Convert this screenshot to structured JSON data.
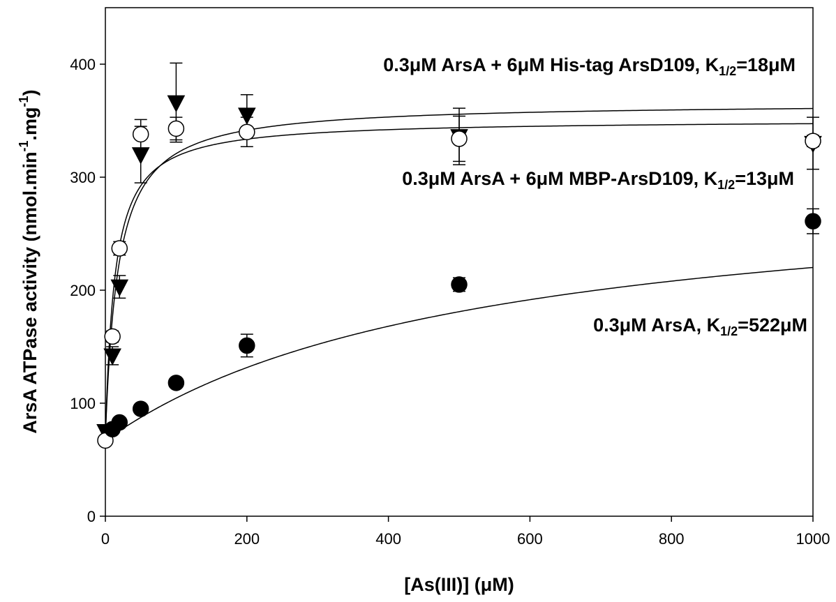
{
  "chart_data": {
    "type": "scatter",
    "xlabel": "[As(III)] (μM)",
    "ylabel": {
      "main": "ArsA ATPase activity (nmol.min",
      "sup1": "-1",
      "mid": ".mg",
      "sup2": "-1",
      "end": ")"
    },
    "xlim": [
      0,
      1000
    ],
    "ylim": [
      0,
      450
    ],
    "xticks": [
      0,
      200,
      400,
      600,
      800,
      1000
    ],
    "yticks": [
      0,
      100,
      200,
      300,
      400
    ],
    "grid": false,
    "annotations": [
      {
        "parts": [
          {
            "text": "0.3μM ArsA + 6μM His-tag ArsD109, K"
          },
          {
            "text": "1/2",
            "sub": true
          },
          {
            "text": "=18μM"
          }
        ]
      },
      {
        "parts": [
          {
            "text": "0.3μM ArsA + 6μM MBP-ArsD109, K"
          },
          {
            "text": "1/2",
            "sub": true
          },
          {
            "text": "=13μM"
          }
        ]
      },
      {
        "parts": [
          {
            "text": "0.3μM ArsA, K"
          },
          {
            "text": "1/2",
            "sub": true
          },
          {
            "text": "=522μM"
          }
        ]
      }
    ],
    "series": [
      {
        "marker": "triangle-down-filled",
        "x": [
          0,
          10,
          20,
          50,
          100,
          200,
          500,
          1000
        ],
        "y": [
          75,
          142,
          203,
          320,
          366,
          355,
          336,
          330
        ],
        "err": [
          5,
          8,
          10,
          25,
          35,
          18,
          25,
          23
        ],
        "fit": {
          "vmax": 366,
          "k": 18,
          "base": 70
        }
      },
      {
        "marker": "circle-open",
        "x": [
          0,
          10,
          20,
          50,
          100,
          200,
          500,
          1000
        ],
        "y": [
          67,
          159,
          237,
          338,
          343,
          340,
          334,
          332
        ],
        "err": [
          3,
          5,
          6,
          13,
          10,
          13,
          20,
          5
        ],
        "fit": {
          "vmax": 351,
          "k": 13,
          "base": 67
        }
      },
      {
        "marker": "circle-filled",
        "x": [
          10,
          20,
          50,
          100,
          200,
          500,
          1000
        ],
        "y": [
          77,
          83,
          95,
          118,
          151,
          205,
          261
        ],
        "err": [
          3,
          3,
          3,
          4,
          10,
          6,
          11
        ],
        "fit": {
          "vmax": 300,
          "k": 522,
          "base": 67
        }
      }
    ]
  }
}
